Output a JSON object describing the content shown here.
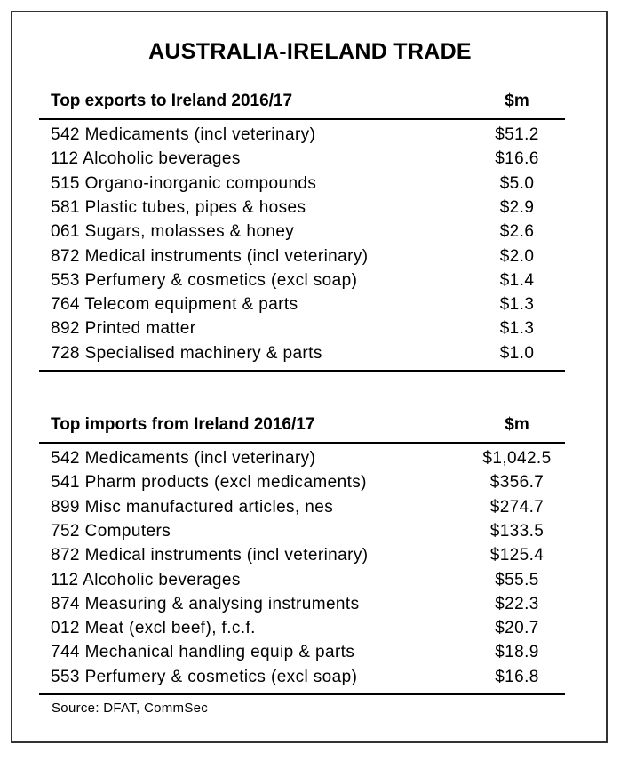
{
  "title": "AUSTRALIA-IRELAND TRADE",
  "tables": [
    {
      "header": {
        "label": "Top exports to Ireland 2016/17",
        "unit": "$m"
      },
      "rows": [
        [
          "542 Medicaments (incl veterinary)",
          "$51.2"
        ],
        [
          "112 Alcoholic beverages",
          "$16.6"
        ],
        [
          "515 Organo-inorganic compounds",
          "$5.0"
        ],
        [
          "581 Plastic tubes, pipes & hoses",
          "$2.9"
        ],
        [
          "061 Sugars, molasses & honey",
          "$2.6"
        ],
        [
          "872 Medical instruments (incl veterinary)",
          "$2.0"
        ],
        [
          "553 Perfumery & cosmetics (excl soap)",
          "$1.4"
        ],
        [
          "764 Telecom equipment & parts",
          "$1.3"
        ],
        [
          "892 Printed matter",
          "$1.3"
        ],
        [
          "728 Specialised machinery & parts",
          "$1.0"
        ]
      ]
    },
    {
      "header": {
        "label": "Top imports from Ireland 2016/17",
        "unit": "$m"
      },
      "rows": [
        [
          "542 Medicaments (incl veterinary)",
          "$1,042.5"
        ],
        [
          "541 Pharm products (excl medicaments)",
          "$356.7"
        ],
        [
          "899 Misc manufactured articles, nes",
          "$274.7"
        ],
        [
          "752 Computers",
          "$133.5"
        ],
        [
          "872 Medical instruments (incl veterinary)",
          "$125.4"
        ],
        [
          "112 Alcoholic beverages",
          "$55.5"
        ],
        [
          "874 Measuring & analysing instruments",
          "$22.3"
        ],
        [
          "012 Meat (excl beef), f.c.f.",
          "$20.7"
        ],
        [
          "744 Mechanical handling equip & parts",
          "$18.9"
        ],
        [
          "553 Perfumery & cosmetics (excl soap)",
          "$16.8"
        ]
      ]
    }
  ],
  "source": "Source: DFAT, CommSec"
}
